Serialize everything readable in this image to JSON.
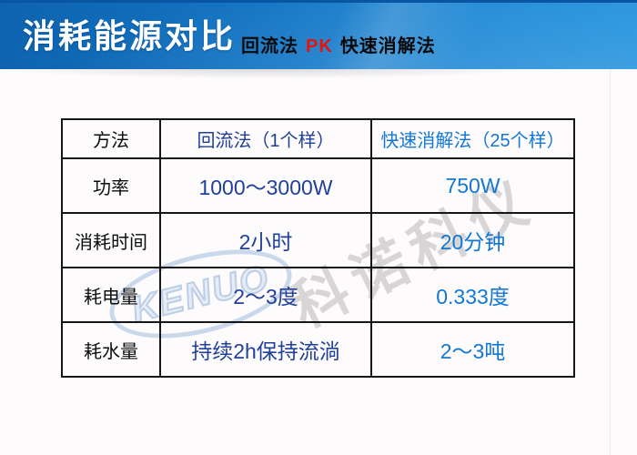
{
  "page": {
    "background": "#fdfbfc"
  },
  "header": {
    "title": "消耗能源对比",
    "subtitle_left": "回流法",
    "subtitle_vs": "PK",
    "subtitle_right": "快速消解法",
    "colors": {
      "bg_gradient_start": "#0e63ae",
      "bg_gradient_end": "#2192dd",
      "title_text": "#ffffff",
      "subtitle_text": "#0a0a0a",
      "pk_text": "#e8120c"
    }
  },
  "watermark": {
    "logo_text": "KENUO",
    "cn_text": "科诺科仪",
    "logo_color": "rgba(125,165,210,0.45)",
    "cn_color": "rgba(186,182,183,0.55)"
  },
  "table": {
    "border_color": "#161616",
    "method_col_color": "#0d0d0d",
    "reflux_col_color": "#20409a",
    "rapid_col_color": "#1377d4",
    "header": [
      "方法",
      "回流法（1个样）",
      "快速消解法（25个样）"
    ],
    "rows": [
      {
        "label": "功率",
        "reflux": "1000～3000W",
        "rapid": "750W"
      },
      {
        "label": "消耗时间",
        "reflux": "2小时",
        "rapid": "20分钟"
      },
      {
        "label": "耗电量",
        "reflux": "2～3度",
        "rapid": "0.333度"
      },
      {
        "label": "耗水量",
        "reflux": "持续2h保持流淌",
        "rapid": "2～3吨"
      }
    ]
  }
}
